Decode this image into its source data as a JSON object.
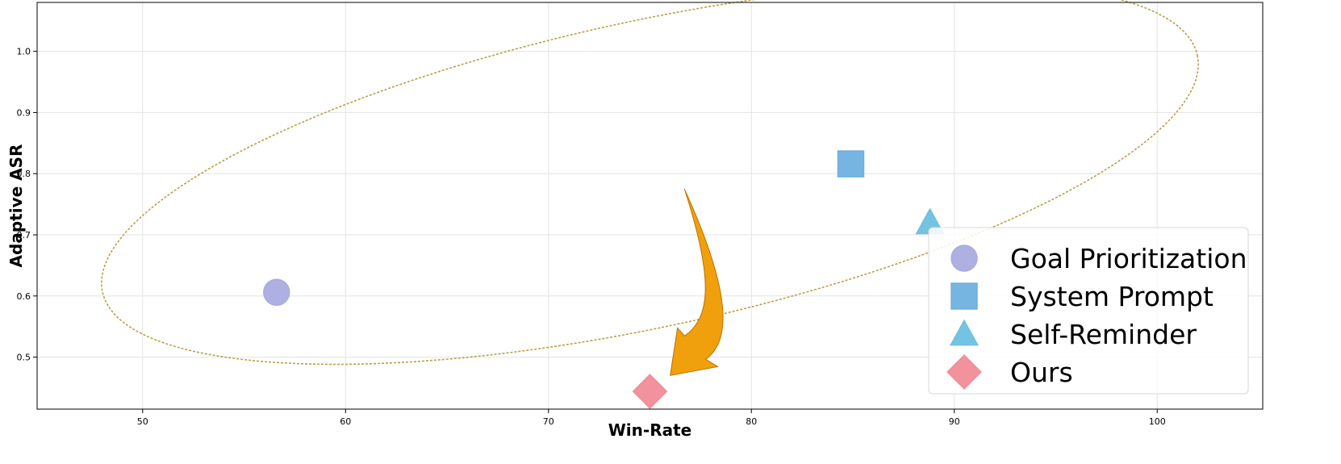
{
  "chart_data": {
    "type": "scatter",
    "xlabel": "Win-Rate",
    "ylabel": "Adaptive ASR",
    "xlim": [
      44.8,
      105.2
    ],
    "ylim": [
      0.415,
      1.08
    ],
    "xticks": [
      50,
      60,
      70,
      80,
      90,
      100
    ],
    "yticks": [
      0.5,
      0.6,
      0.7,
      0.8,
      0.9,
      1.0
    ],
    "grid": true,
    "legend_position": "lower-right",
    "series": [
      {
        "name": "Goal Prioritization",
        "marker": "circle",
        "color": "#a9acdf",
        "x": 56.6,
        "y": 0.606
      },
      {
        "name": "System Prompt",
        "marker": "square",
        "color": "#6fb0e0",
        "x": 84.9,
        "y": 0.816
      },
      {
        "name": "Self-Reminder",
        "marker": "triangle",
        "color": "#6ec0e0",
        "x": 88.8,
        "y": 0.72
      },
      {
        "name": "Ours",
        "marker": "diamond",
        "color": "#f08c98",
        "x": 75.0,
        "y": 0.444
      }
    ],
    "annotations": [
      {
        "type": "dashed-ellipse",
        "color": "#b8a04a",
        "center": [
          75.0,
          0.8
        ],
        "x_extent": [
          47.4,
          102.6
        ],
        "y_extent": [
          0.55,
          1.05
        ],
        "tilt_deg": -12.2
      },
      {
        "type": "curved-arrow",
        "color": "#f0a00c",
        "from": [
          76.7,
          0.775
        ],
        "to": [
          76.0,
          0.47
        ]
      }
    ]
  }
}
